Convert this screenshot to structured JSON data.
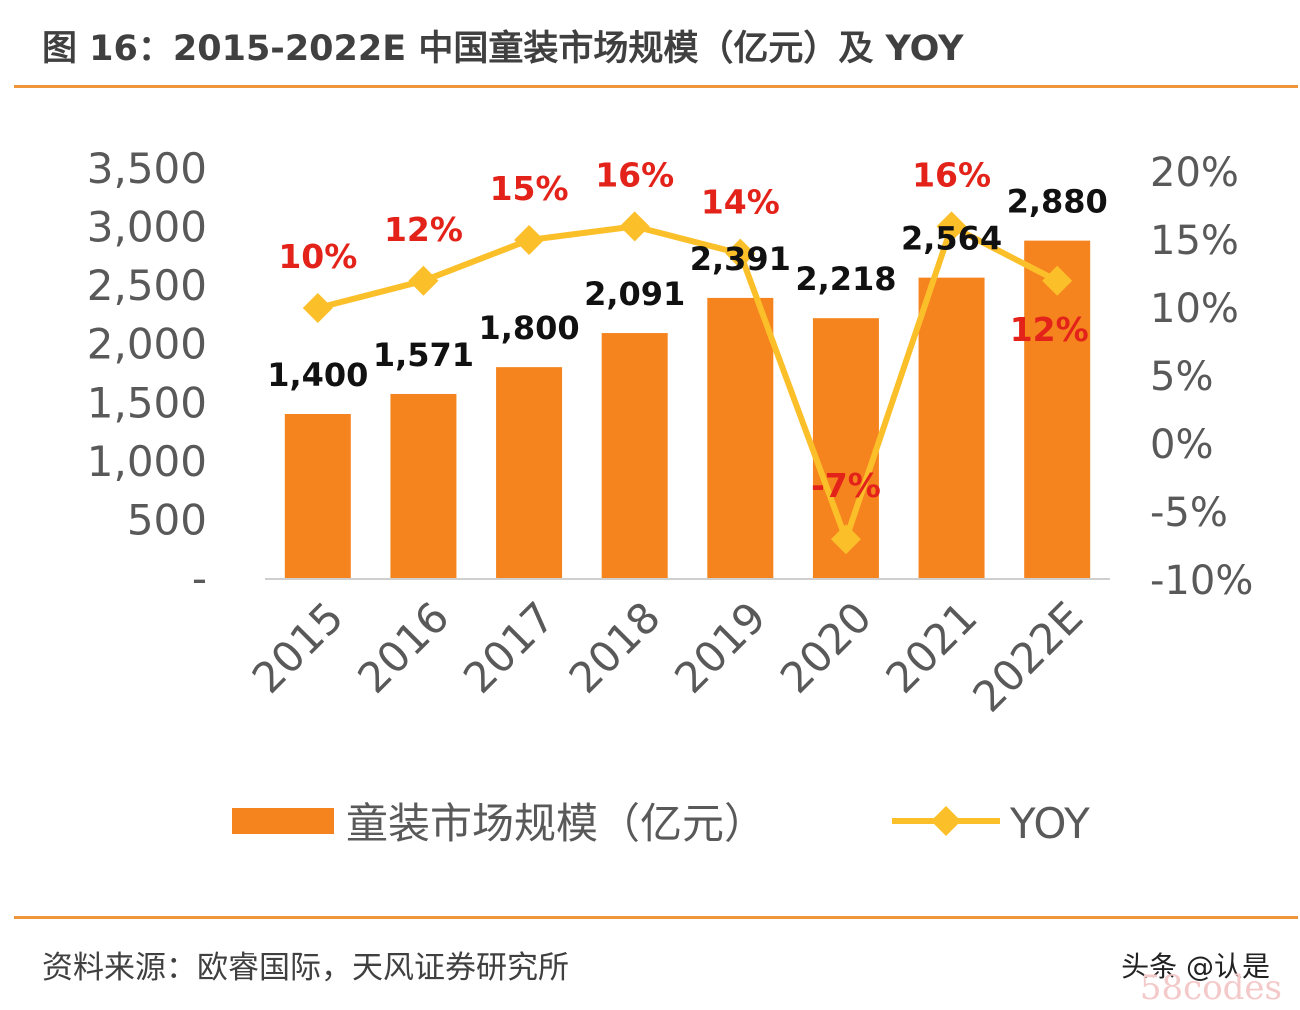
{
  "header": {
    "title": "图 16：2015-2022E 中国童装市场规模（亿元）及 YOY"
  },
  "footer": {
    "source": "资料来源：欧睿国际，天风证券研究所"
  },
  "watermark": {
    "text": "头条 @认是",
    "faint": "58codes"
  },
  "chart_data": {
    "type": "bar",
    "categories": [
      "2015",
      "2016",
      "2017",
      "2018",
      "2019",
      "2020",
      "2021",
      "2022E"
    ],
    "series": [
      {
        "name": "童装市场规模（亿元）",
        "type": "bar",
        "axis": "left",
        "values": [
          1400,
          1571,
          1800,
          2091,
          2391,
          2218,
          2564,
          2880
        ],
        "labels": [
          "1,400",
          "1,571",
          "1,800",
          "2,091",
          "2,391",
          "2,218",
          "2,564",
          "2,880"
        ]
      },
      {
        "name": "YOY",
        "type": "line",
        "axis": "right",
        "values": [
          10,
          12,
          15,
          16,
          14,
          -7,
          16,
          12
        ],
        "labels": [
          "10%",
          "12%",
          "15%",
          "16%",
          "14%",
          "-7%",
          "16%",
          "12%"
        ]
      }
    ],
    "y_left": {
      "min": 0,
      "max": 3500,
      "ticks": [
        0,
        500,
        1000,
        1500,
        2000,
        2500,
        3000,
        3500
      ],
      "tick_labels": [
        "-",
        "500",
        "1,000",
        "1,500",
        "2,000",
        "2,500",
        "3,000",
        "3,500"
      ]
    },
    "y_right": {
      "min": -10,
      "max": 20,
      "ticks": [
        -10,
        -5,
        0,
        5,
        10,
        15,
        20
      ],
      "tick_labels": [
        "-10%",
        "-5%",
        "0%",
        "5%",
        "10%",
        "15%",
        "20%"
      ]
    },
    "grid": false,
    "legend": "bottom",
    "colors": {
      "bar": "#f5841f",
      "line": "#fbbf2a",
      "pct_label": "#e3231a",
      "value_label": "#111111",
      "axis_text": "#595959"
    }
  }
}
